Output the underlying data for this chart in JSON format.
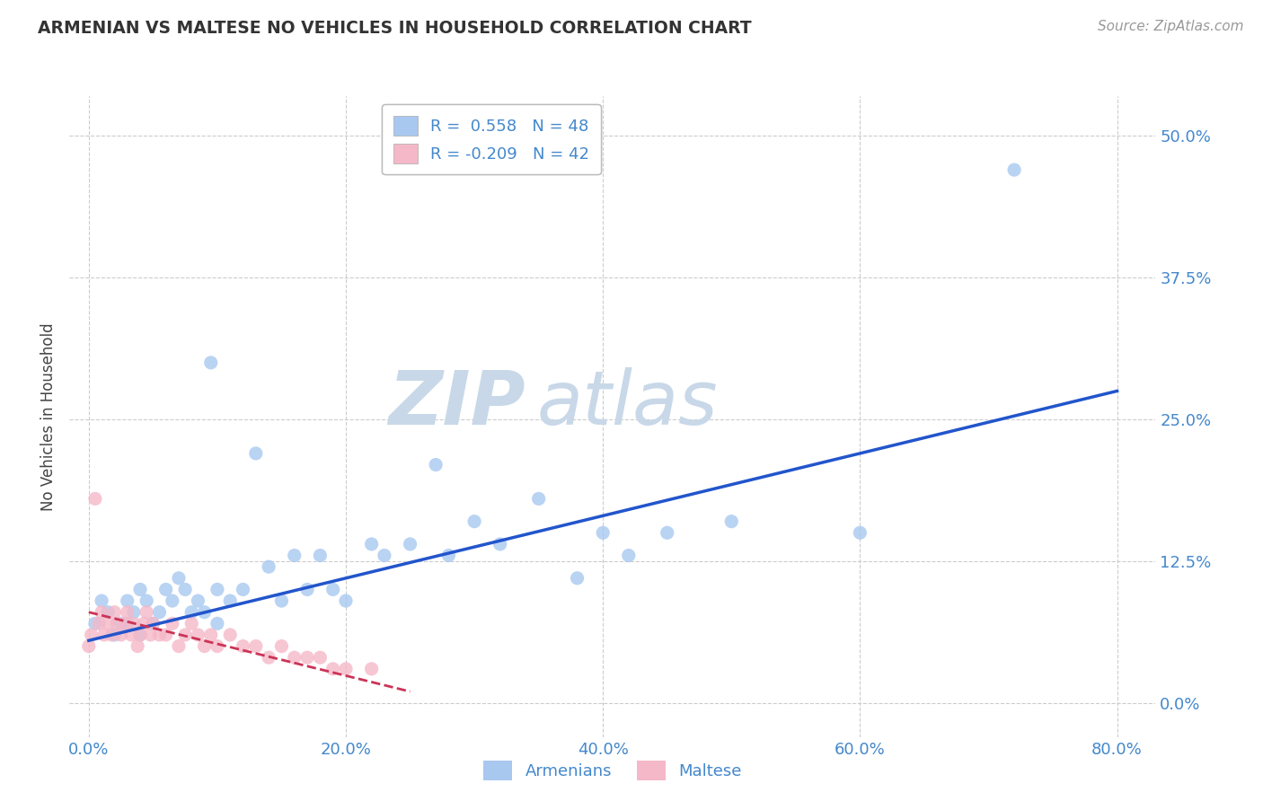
{
  "title": "ARMENIAN VS MALTESE NO VEHICLES IN HOUSEHOLD CORRELATION CHART",
  "source": "Source: ZipAtlas.com",
  "xlabel_tick_vals": [
    0.0,
    0.2,
    0.4,
    0.6,
    0.8
  ],
  "ylabel_tick_vals": [
    0.0,
    0.125,
    0.25,
    0.375,
    0.5
  ],
  "xlim": [
    -0.015,
    0.83
  ],
  "ylim": [
    -0.03,
    0.535
  ],
  "ylabel": "No Vehicles in Household",
  "armenian_R": 0.558,
  "armenian_N": 48,
  "maltese_R": -0.209,
  "maltese_N": 42,
  "armenian_color": "#a8c8f0",
  "maltese_color": "#f5b8c8",
  "regression_armenian_color": "#2255cc",
  "regression_maltese_color": "#cc3355",
  "watermark_zip_color": "#c8d8e8",
  "watermark_atlas_color": "#c8d8e8",
  "title_color": "#333333",
  "axis_label_color": "#4488cc",
  "grid_color": "#cccccc",
  "background_color": "#ffffff",
  "armenian_x": [
    0.005,
    0.01,
    0.015,
    0.02,
    0.025,
    0.03,
    0.03,
    0.035,
    0.04,
    0.04,
    0.045,
    0.05,
    0.055,
    0.06,
    0.065,
    0.07,
    0.075,
    0.08,
    0.085,
    0.09,
    0.095,
    0.1,
    0.1,
    0.11,
    0.12,
    0.13,
    0.14,
    0.15,
    0.16,
    0.17,
    0.18,
    0.19,
    0.2,
    0.22,
    0.23,
    0.25,
    0.27,
    0.28,
    0.3,
    0.32,
    0.35,
    0.38,
    0.4,
    0.42,
    0.45,
    0.5,
    0.6,
    0.72
  ],
  "armenian_y": [
    0.07,
    0.09,
    0.08,
    0.06,
    0.07,
    0.09,
    0.07,
    0.08,
    0.06,
    0.1,
    0.09,
    0.07,
    0.08,
    0.1,
    0.09,
    0.11,
    0.1,
    0.08,
    0.09,
    0.08,
    0.3,
    0.07,
    0.1,
    0.09,
    0.1,
    0.22,
    0.12,
    0.09,
    0.13,
    0.1,
    0.13,
    0.1,
    0.09,
    0.14,
    0.13,
    0.14,
    0.21,
    0.13,
    0.16,
    0.14,
    0.18,
    0.11,
    0.15,
    0.13,
    0.15,
    0.16,
    0.15,
    0.47
  ],
  "maltese_x": [
    0.0,
    0.002,
    0.005,
    0.008,
    0.01,
    0.012,
    0.015,
    0.018,
    0.02,
    0.022,
    0.025,
    0.028,
    0.03,
    0.033,
    0.035,
    0.038,
    0.04,
    0.043,
    0.045,
    0.048,
    0.05,
    0.055,
    0.06,
    0.065,
    0.07,
    0.075,
    0.08,
    0.085,
    0.09,
    0.095,
    0.1,
    0.11,
    0.12,
    0.13,
    0.14,
    0.15,
    0.16,
    0.17,
    0.18,
    0.19,
    0.2,
    0.22
  ],
  "maltese_y": [
    0.05,
    0.06,
    0.18,
    0.07,
    0.08,
    0.06,
    0.07,
    0.06,
    0.08,
    0.07,
    0.06,
    0.07,
    0.08,
    0.06,
    0.07,
    0.05,
    0.06,
    0.07,
    0.08,
    0.06,
    0.07,
    0.06,
    0.06,
    0.07,
    0.05,
    0.06,
    0.07,
    0.06,
    0.05,
    0.06,
    0.05,
    0.06,
    0.05,
    0.05,
    0.04,
    0.05,
    0.04,
    0.04,
    0.04,
    0.03,
    0.03,
    0.03
  ]
}
